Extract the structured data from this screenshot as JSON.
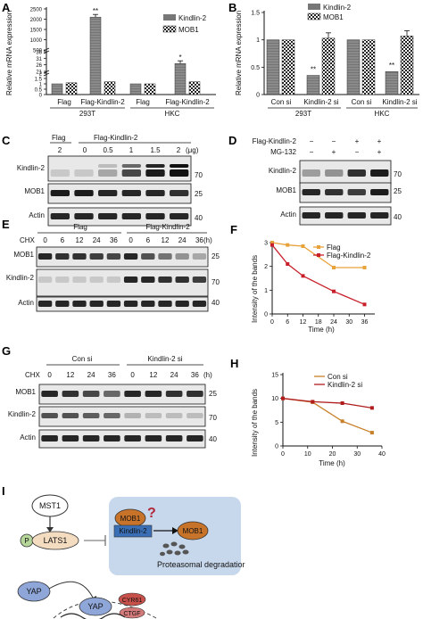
{
  "panels": {
    "A": "A",
    "B": "B",
    "C": "C",
    "D": "D",
    "E": "E",
    "F": "F",
    "G": "G",
    "H": "H",
    "I": "I"
  },
  "chart_data": [
    {
      "panel": "A",
      "type": "bar",
      "ylabel": "Relative mRNA expression",
      "group_labels": [
        "Flag",
        "Flag-Kindlin-2",
        "Flag",
        "Flag-Kindlin-2"
      ],
      "cell_lines": [
        "293T",
        "HKC"
      ],
      "series": [
        {
          "name": "Kindlin-2",
          "values": [
            1.0,
            2100,
            1.0,
            27
          ]
        },
        {
          "name": "MOB1",
          "values": [
            1.1,
            1.2,
            1.0,
            1.2
          ]
        }
      ],
      "significance": [
        "",
        "**",
        "",
        "*"
      ],
      "ytick_labels": [
        "0",
        "0.5",
        "1",
        "1.5",
        "2",
        "21",
        "26",
        "31",
        "36",
        "500",
        "1000",
        "1500",
        "2000",
        "2500"
      ],
      "broken_axis": true
    },
    {
      "panel": "B",
      "type": "bar",
      "ylabel": "Relative mRNA expression",
      "group_labels": [
        "Con si",
        "Kindlin-2 si",
        "Con si",
        "Kindlin-2 si"
      ],
      "cell_lines": [
        "293T",
        "HKC"
      ],
      "series": [
        {
          "name": "Kindlin-2",
          "values": [
            1.0,
            0.35,
            1.0,
            0.42
          ]
        },
        {
          "name": "MOB1",
          "values": [
            1.0,
            1.03,
            1.0,
            1.07
          ]
        }
      ],
      "significance": [
        "",
        "**",
        "",
        "**"
      ],
      "ylim": [
        0,
        1.5
      ],
      "ytick_labels": [
        "0",
        "0.5",
        "1",
        "1.5"
      ]
    },
    {
      "panel": "F",
      "type": "line",
      "xlabel": "Time (h)",
      "ylabel": "Intensity of the bands",
      "x": [
        0,
        6,
        12,
        24,
        36
      ],
      "series": [
        {
          "name": "Flag",
          "color": "#e8a23a",
          "values": [
            3.0,
            2.9,
            2.85,
            1.95,
            1.95
          ]
        },
        {
          "name": "Flag-Kindlin-2",
          "color": "#c8202a",
          "values": [
            2.9,
            2.1,
            1.6,
            0.95,
            0.4
          ]
        }
      ],
      "xlim": [
        0,
        40
      ],
      "ylim": [
        0,
        3
      ],
      "xtick_labels": [
        "0",
        "6",
        "12",
        "18",
        "24",
        "30",
        "36"
      ],
      "ytick_labels": [
        "0",
        "1",
        "2",
        "3"
      ]
    },
    {
      "panel": "H",
      "type": "line",
      "xlabel": "Time (h)",
      "ylabel": "Intensity of the bands",
      "x": [
        0,
        12,
        24,
        36
      ],
      "series": [
        {
          "name": "Con si",
          "color": "#c8812a",
          "values": [
            10,
            9.2,
            5.2,
            2.8
          ]
        },
        {
          "name": "Kindlin-2 si",
          "color": "#b01c1c",
          "values": [
            10,
            9.3,
            9.0,
            8.0
          ]
        }
      ],
      "xlim": [
        0,
        40
      ],
      "ylim": [
        0,
        15
      ],
      "xtick_labels": [
        "0",
        "10",
        "20",
        "30",
        "40"
      ],
      "ytick_labels": [
        "0",
        "5",
        "10",
        "15"
      ]
    }
  ],
  "blot_c": {
    "lane_labels": [
      "Flag",
      "Flag-Kindlin-2"
    ],
    "doses": [
      "2",
      "0",
      "0.5",
      "1",
      "1.5",
      "2"
    ],
    "unit": "(μg)",
    "rows": [
      "Kindlin-2",
      "MOB1",
      "Actin"
    ],
    "markers": [
      "70",
      "25",
      "40"
    ]
  },
  "blot_d": {
    "treatments": [
      "Flag-Kindlin-2",
      "MG-132"
    ],
    "signs_row1": [
      "−",
      "−",
      "+",
      "+"
    ],
    "signs_row2": [
      "−",
      "+",
      "−",
      "+"
    ],
    "rows": [
      "Kindlin-2",
      "MOB1",
      "Actin"
    ],
    "markers": [
      "70",
      "25",
      "40"
    ]
  },
  "blot_e": {
    "groups": [
      "Flag",
      "Flag-Kindlin-2"
    ],
    "chx_label": "CHX",
    "times": [
      "0",
      "6",
      "12",
      "24",
      "36",
      "0",
      "6",
      "12",
      "24",
      "36"
    ],
    "unit": "(h)",
    "rows": [
      "MOB1",
      "Kindlin-2",
      "Actin"
    ],
    "markers": [
      "25",
      "70",
      "40"
    ]
  },
  "blot_g": {
    "groups": [
      "Con si",
      "Kindlin-2 si"
    ],
    "chx_label": "CHX",
    "times": [
      "0",
      "12",
      "24",
      "36",
      "0",
      "12",
      "24",
      "36"
    ],
    "unit": "(h)",
    "rows": [
      "MOB1",
      "Kindlin-2",
      "Actin"
    ],
    "markers": [
      "25",
      "70",
      "40"
    ]
  },
  "diagram_i": {
    "mst1": "MST1",
    "p": "P",
    "lats1": "LATS1",
    "mob1_left": "MOB1",
    "question": "?",
    "kindlin2": "Kindlin-2",
    "mob1_right": "MOB1",
    "proteasome": "Proteasomal degradatior",
    "yap_top": "YAP",
    "yap_bottom": "YAP",
    "cyr61": "CYR61",
    "ctgf": "CTGF"
  }
}
